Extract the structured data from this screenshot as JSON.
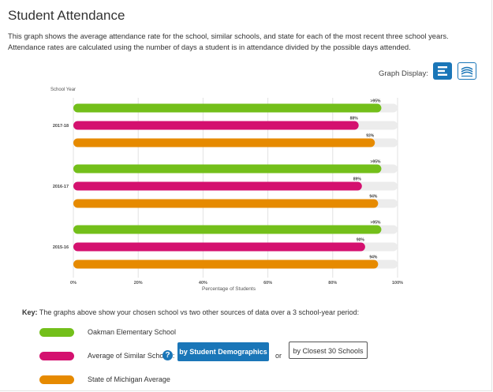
{
  "page": {
    "title": "Student Attendance",
    "description": "This graph shows the average attendance rate for the school, similar schools, and state for each of the most recent three school years. Attendance rates are calculated using the number of days a student is in attendance divided by the possible days attended."
  },
  "graph_display": {
    "label": "Graph Display:",
    "options": [
      "bar-chart-icon",
      "line-chart-icon"
    ],
    "selected": "bar-chart-icon"
  },
  "colors": {
    "school": "#73bf1a",
    "similar": "#d4116f",
    "state": "#e68a00",
    "track": "#ececec",
    "accent": "#1a76b8"
  },
  "chart_data": {
    "type": "bar",
    "orientation": "horizontal",
    "ylabel": "School Year",
    "xlabel": "Percentage of Students",
    "xlim": [
      0,
      100
    ],
    "x_ticks": [
      "0%",
      "20%",
      "40%",
      "60%",
      "80%",
      "100%"
    ],
    "categories": [
      "2017-18",
      "2016-17",
      "2015-16"
    ],
    "series": [
      {
        "name": "Oakman Elementary School",
        "values": [
          95,
          95,
          95
        ],
        "labels": [
          ">95%",
          ">95%",
          ">95%"
        ]
      },
      {
        "name": "Average of Similar Schools",
        "values": [
          88,
          89,
          90
        ],
        "labels": [
          "88%",
          "89%",
          "90%"
        ]
      },
      {
        "name": "State of Michigan Average",
        "values": [
          93,
          94,
          94
        ],
        "labels": [
          "93%",
          "94%",
          "94%"
        ]
      }
    ],
    "grid": true
  },
  "key": {
    "lead": "Key:",
    "text": "The graphs above show your chosen school vs two other sources of data over a 3 school-year period:",
    "school_label": "Oakman Elementary School",
    "similar_label": "Average of Similar Schools:",
    "state_label": "State of Michigan Average",
    "help": "?",
    "by_demographics": "by Student Demographics",
    "or": "or",
    "by_closest": "by Closest 30 Schools"
  }
}
